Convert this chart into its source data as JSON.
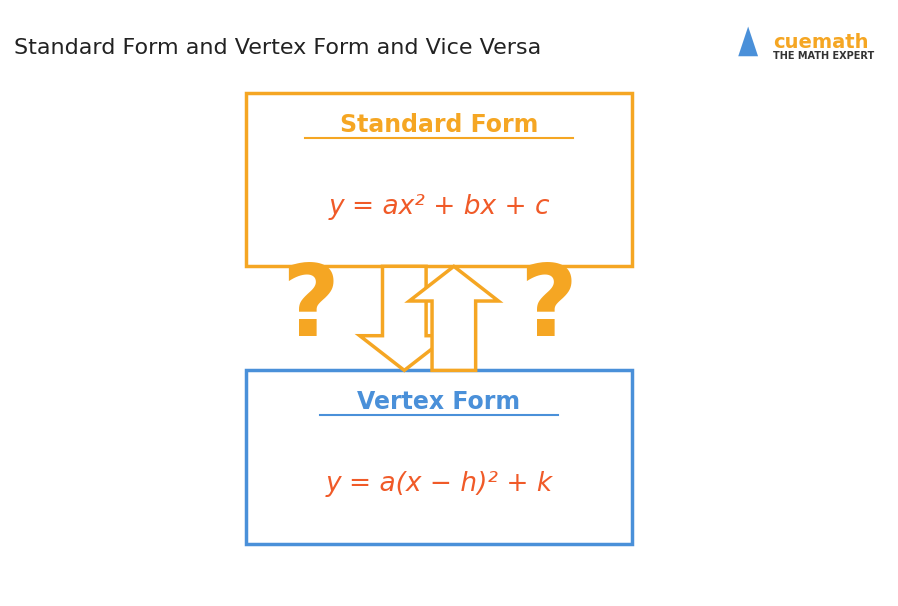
{
  "title": "Standard Form and Vertex Form and Vice Versa",
  "title_fontsize": 16,
  "title_color": "#222222",
  "background_color": "#ffffff",
  "orange_color": "#F5A623",
  "blue_color": "#4A90D9",
  "red_orange_color": "#F05A28",
  "box1_label": "Standard Form",
  "box1_formula": "y = ax² + bx + c",
  "box1_border_color": "#F5A623",
  "box1_label_color": "#F5A623",
  "box1_formula_color": "#F05A28",
  "box2_label": "Vertex Form",
  "box2_formula": "y = a(x − h)² + k",
  "box2_border_color": "#4A90D9",
  "box2_label_color": "#4A90D9",
  "box2_formula_color": "#F05A28",
  "arrow_color": "#F5A623",
  "question_mark_color": "#F5A623"
}
